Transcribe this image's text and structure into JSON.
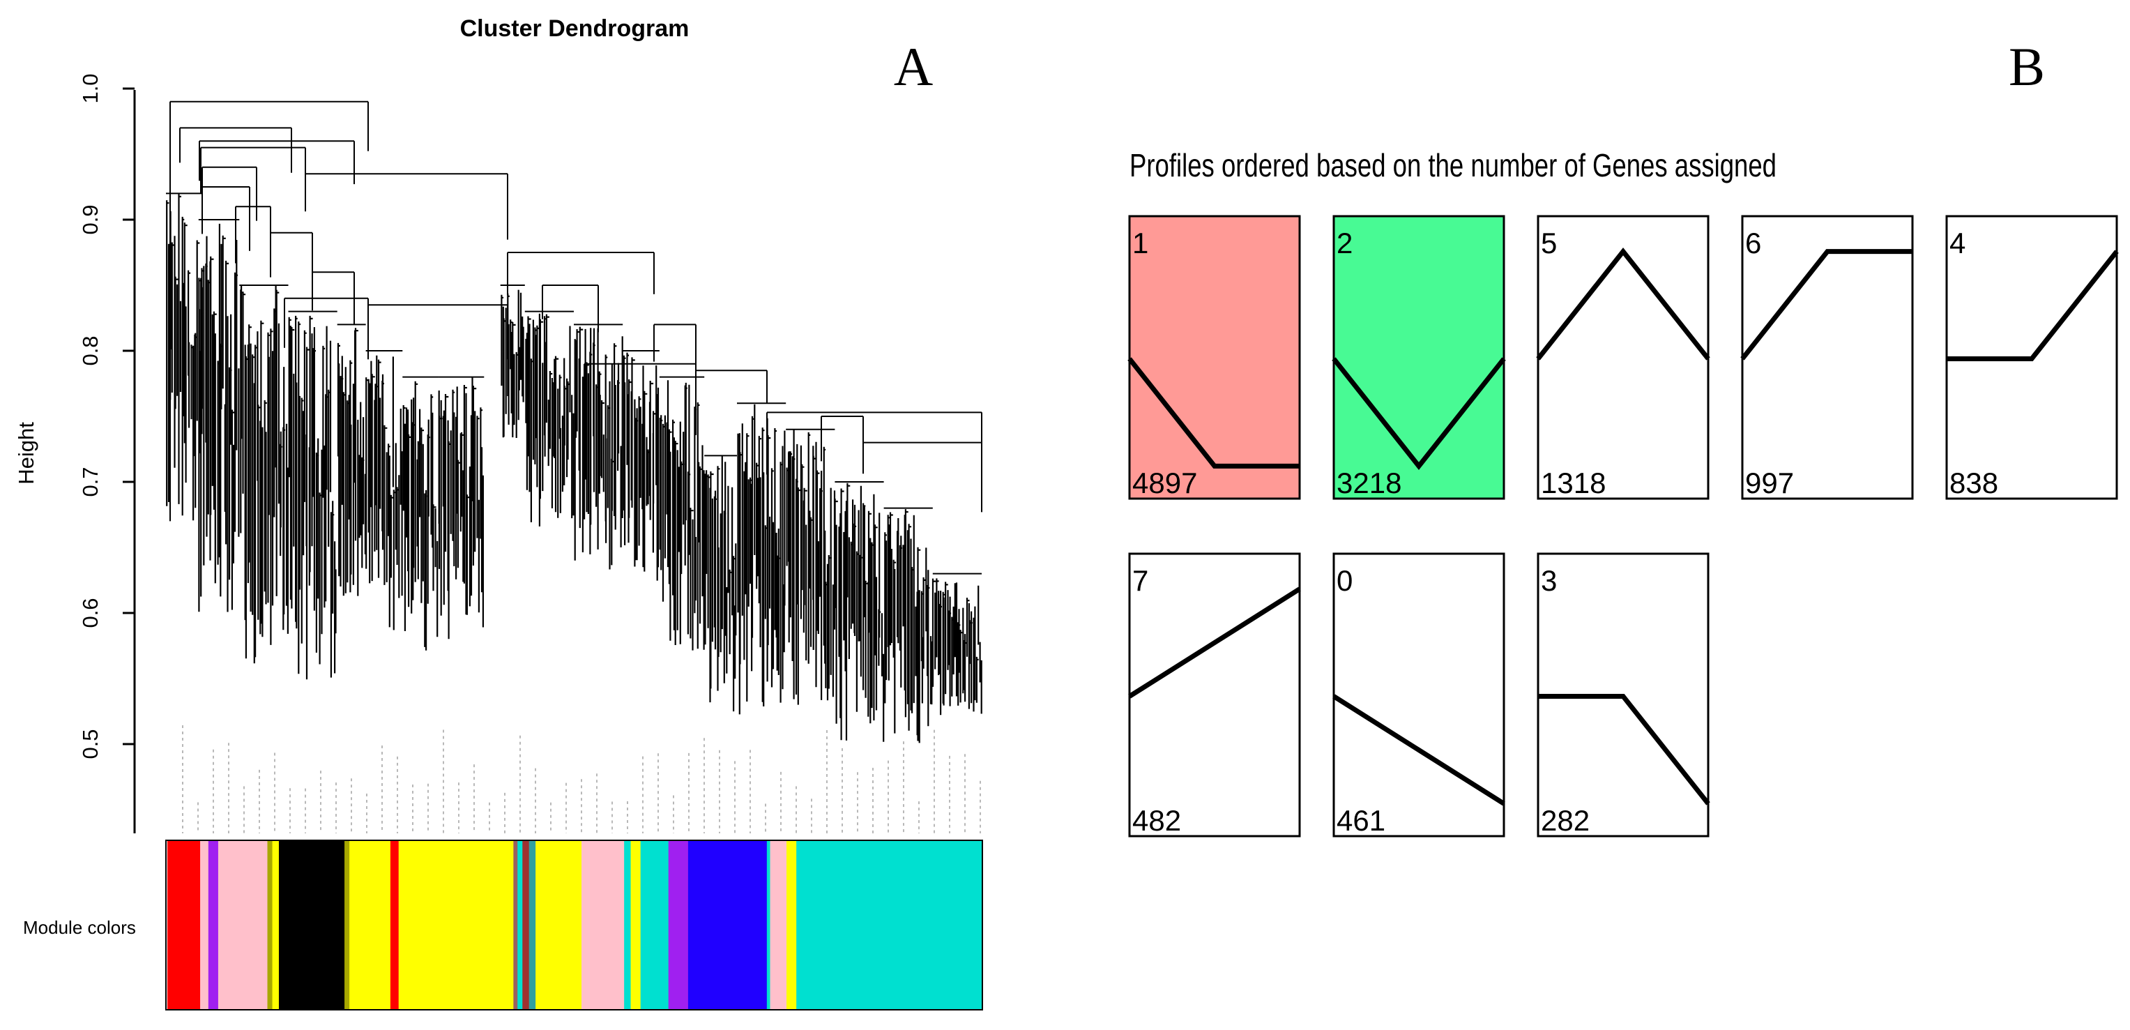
{
  "figure": {
    "panel_a_letter": "A",
    "panel_b_letter": "B"
  },
  "chart_data": [
    {
      "type": "dendrogram",
      "title": "Cluster Dendrogram",
      "xlabel": "",
      "ylabel": "Height",
      "ylim": [
        0.44,
        1.0
      ],
      "y_ticks": [
        "0.5",
        "0.6",
        "0.7",
        "0.8",
        "0.9",
        "1.0"
      ],
      "y_tick_values": [
        0.5,
        0.6,
        0.7,
        0.8,
        0.9,
        1.0
      ],
      "grid": false,
      "leaf_count": 1000,
      "major_merges": [
        {
          "x_frac": 0.2,
          "y": 0.99
        },
        {
          "x_frac": 0.49,
          "y": 0.935
        },
        {
          "x_frac": 0.36,
          "y": 0.835
        },
        {
          "x_frac": 0.7,
          "y": 0.78
        },
        {
          "x_frac": 0.88,
          "y": 0.753
        }
      ],
      "module_colors_label": "Module colors",
      "module_color_segments": [
        {
          "color": "#ff0000",
          "width": 4
        },
        {
          "color": "#ffc0cb",
          "width": 1
        },
        {
          "color": "#a020f0",
          "width": 1.2
        },
        {
          "color": "#ffc0cb",
          "width": 6
        },
        {
          "color": "#a8a800",
          "width": 0.6
        },
        {
          "color": "#ffff00",
          "width": 0.8
        },
        {
          "color": "#000000",
          "width": 8
        },
        {
          "color": "#a8a800",
          "width": 0.6
        },
        {
          "color": "#ffff00",
          "width": 5
        },
        {
          "color": "#ff0000",
          "width": 1
        },
        {
          "color": "#ffff00",
          "width": 14
        },
        {
          "color": "#9a6060",
          "width": 0.5
        },
        {
          "color": "#00e0d0",
          "width": 0.6
        },
        {
          "color": "#a03030",
          "width": 0.8
        },
        {
          "color": "#30a0a0",
          "width": 0.8
        },
        {
          "color": "#ffff00",
          "width": 5.6
        },
        {
          "color": "#ffc0cb",
          "width": 5.2
        },
        {
          "color": "#00e0d0",
          "width": 0.8
        },
        {
          "color": "#ffff00",
          "width": 1.2
        },
        {
          "color": "#00e0d0",
          "width": 3.4
        },
        {
          "color": "#a020f0",
          "width": 2.4
        },
        {
          "color": "#2000ff",
          "width": 9.6
        },
        {
          "color": "#00e0d0",
          "width": 0.4
        },
        {
          "color": "#ffc0cb",
          "width": 2
        },
        {
          "color": "#ffff00",
          "width": 1.2
        },
        {
          "color": "#00e0d0",
          "width": 22.6
        }
      ]
    },
    {
      "type": "line",
      "title": "Profiles ordered based on the number of Genes assigned",
      "xlabel": "",
      "ylabel": "",
      "x": [
        0,
        1,
        2
      ],
      "ylim": [
        -1,
        1
      ],
      "profiles": [
        {
          "id": "1",
          "genes": "4897",
          "values": [
            0,
            -1,
            -1
          ],
          "highlight": "#ff9a96"
        },
        {
          "id": "2",
          "genes": "3218",
          "values": [
            0,
            -1,
            0
          ],
          "highlight": "#48fa94"
        },
        {
          "id": "5",
          "genes": "1318",
          "values": [
            0,
            1,
            0
          ],
          "highlight": ""
        },
        {
          "id": "6",
          "genes": "997",
          "values": [
            0,
            1,
            1
          ],
          "highlight": ""
        },
        {
          "id": "4",
          "genes": "838",
          "values": [
            0,
            0,
            1
          ],
          "highlight": ""
        },
        {
          "id": "7",
          "genes": "482",
          "values": [
            0,
            0.5,
            1
          ],
          "highlight": ""
        },
        {
          "id": "0",
          "genes": "461",
          "values": [
            0,
            -0.5,
            -1
          ],
          "highlight": ""
        },
        {
          "id": "3",
          "genes": "282",
          "values": [
            0,
            0,
            -1
          ],
          "highlight": ""
        }
      ]
    }
  ]
}
